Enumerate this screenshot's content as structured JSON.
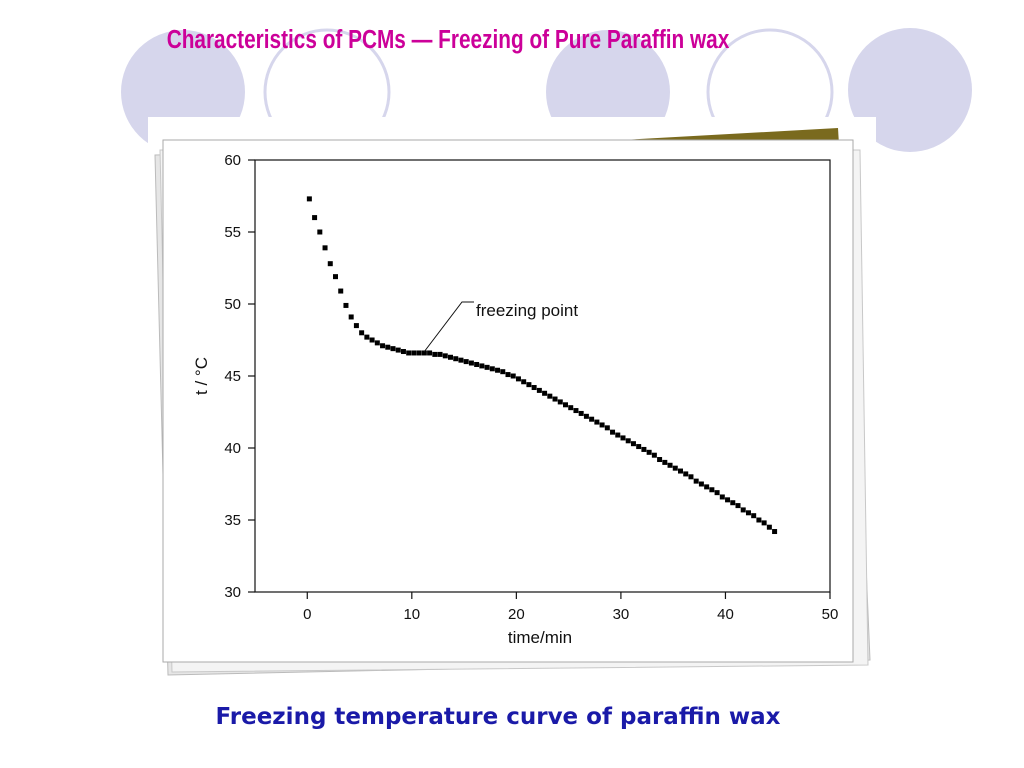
{
  "slide_title": "Characteristics of PCMs —  Freezing of Pure Paraffin wax",
  "caption": "Freezing temperature curve of paraffin wax",
  "chart_data": {
    "type": "scatter",
    "xlabel": "time/min",
    "ylabel": "t / °C",
    "annotation": "freezing point",
    "color": "#000000",
    "xlim": [
      -5,
      50
    ],
    "ylim": [
      30,
      60
    ],
    "xticks": [
      0,
      10,
      20,
      30,
      40,
      50
    ],
    "yticks": [
      30,
      35,
      40,
      45,
      50,
      55,
      60
    ],
    "x": [
      0.2,
      0.7,
      1.2,
      1.7,
      2.2,
      2.7,
      3.2,
      3.7,
      4.2,
      4.7,
      5.2,
      5.7,
      6.2,
      6.7,
      7.2,
      7.7,
      8.2,
      8.7,
      9.2,
      9.7,
      10.2,
      10.7,
      11.2,
      11.7,
      12.2,
      12.7,
      13.2,
      13.7,
      14.2,
      14.7,
      15.2,
      15.7,
      16.2,
      16.7,
      17.2,
      17.7,
      18.2,
      18.7,
      19.2,
      19.7,
      20.2,
      20.7,
      21.2,
      21.7,
      22.2,
      22.7,
      23.2,
      23.7,
      24.2,
      24.7,
      25.2,
      25.7,
      26.2,
      26.7,
      27.2,
      27.7,
      28.2,
      28.7,
      29.2,
      29.7,
      30.2,
      30.7,
      31.2,
      31.7,
      32.2,
      32.7,
      33.2,
      33.7,
      34.2,
      34.7,
      35.2,
      35.7,
      36.2,
      36.7,
      37.2,
      37.7,
      38.2,
      38.7,
      39.2,
      39.7,
      40.2,
      40.7,
      41.2,
      41.7,
      42.2,
      42.7,
      43.2,
      43.7,
      44.2,
      44.7
    ],
    "values": [
      57.3,
      56.0,
      55.0,
      53.9,
      52.8,
      51.9,
      50.9,
      49.9,
      49.1,
      48.5,
      48.0,
      47.7,
      47.5,
      47.3,
      47.1,
      47.0,
      46.9,
      46.8,
      46.7,
      46.6,
      46.6,
      46.6,
      46.6,
      46.6,
      46.5,
      46.5,
      46.4,
      46.3,
      46.2,
      46.1,
      46.0,
      45.9,
      45.8,
      45.7,
      45.6,
      45.5,
      45.4,
      45.3,
      45.1,
      45.0,
      44.8,
      44.6,
      44.4,
      44.2,
      44.0,
      43.8,
      43.6,
      43.4,
      43.2,
      43.0,
      42.8,
      42.6,
      42.4,
      42.2,
      42.0,
      41.8,
      41.6,
      41.4,
      41.1,
      40.9,
      40.7,
      40.5,
      40.3,
      40.1,
      39.9,
      39.7,
      39.5,
      39.2,
      39.0,
      38.8,
      38.6,
      38.4,
      38.2,
      38.0,
      37.7,
      37.5,
      37.3,
      37.1,
      36.9,
      36.6,
      36.4,
      36.2,
      36.0,
      35.7,
      35.5,
      35.3,
      35.0,
      34.8,
      34.5,
      34.2
    ]
  }
}
